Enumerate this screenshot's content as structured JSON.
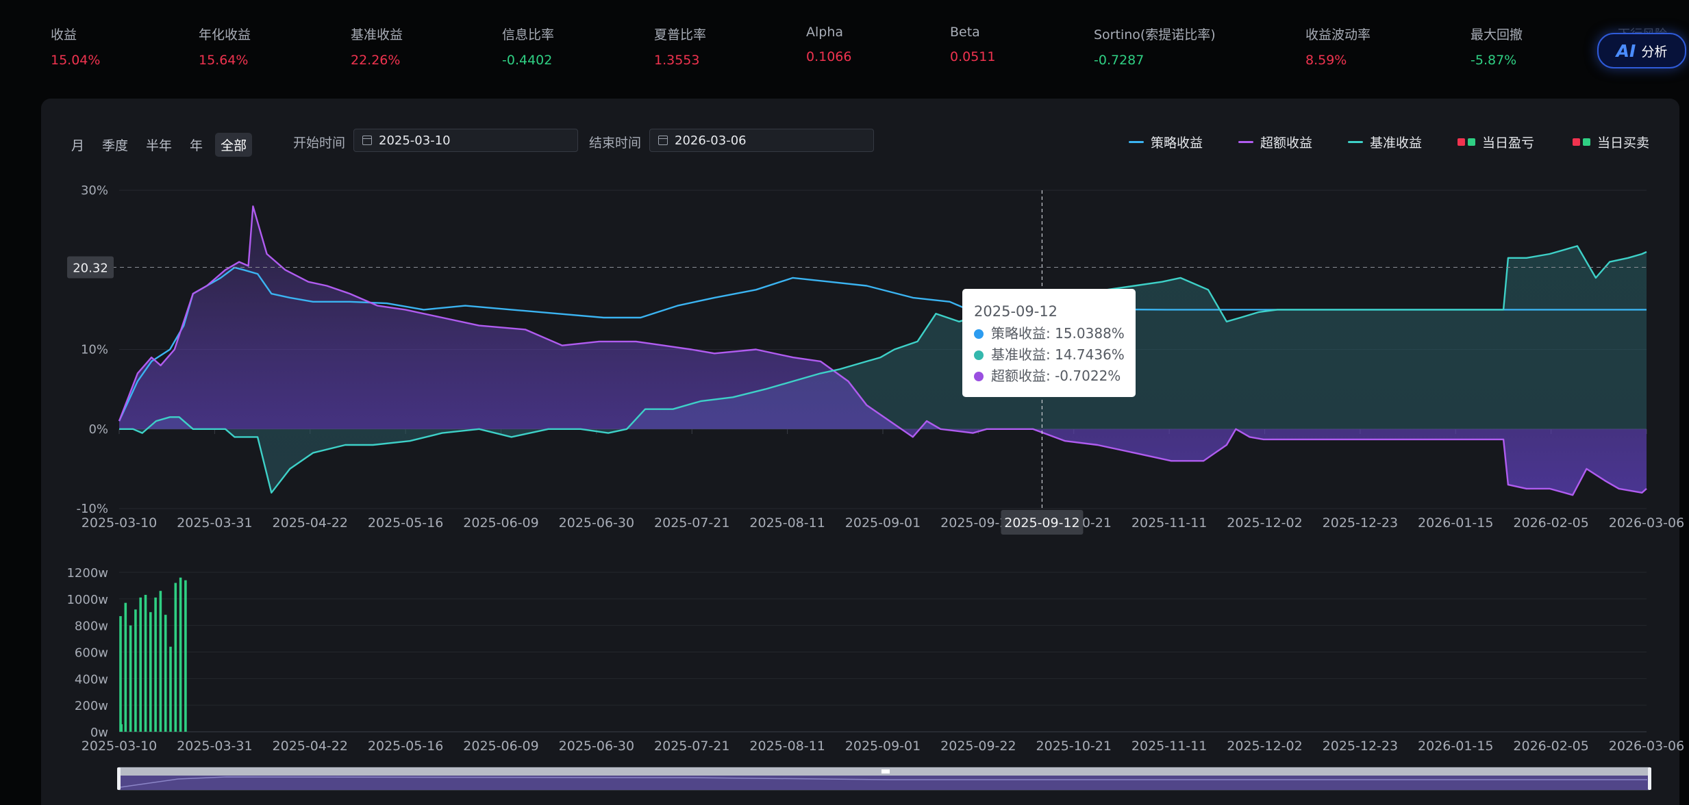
{
  "metrics": [
    {
      "label": "收益",
      "value": "15.04%",
      "color": "#f0334f"
    },
    {
      "label": "年化收益",
      "value": "15.64%",
      "color": "#f0334f"
    },
    {
      "label": "基准收益",
      "value": "22.26%",
      "color": "#f0334f"
    },
    {
      "label": "信息比率",
      "value": "-0.4402",
      "color": "#2fcf83"
    },
    {
      "label": "夏普比率",
      "value": "1.3553",
      "color": "#f0334f"
    },
    {
      "label": "Alpha",
      "value": "0.1066",
      "color": "#f0334f"
    },
    {
      "label": "Beta",
      "value": "0.0511",
      "color": "#f0334f"
    },
    {
      "label": "Sortino(索提诺比率)",
      "value": "-0.7287",
      "color": "#2fcf83"
    },
    {
      "label": "收益波动率",
      "value": "8.59%",
      "color": "#f0334f"
    },
    {
      "label": "最大回撤",
      "value": "-5.87%",
      "color": "#2fcf83"
    }
  ],
  "ai_button": {
    "icon": "AI",
    "label": "分析"
  },
  "ghost_text": "下行风险",
  "periods": [
    "月",
    "季度",
    "半年",
    "年",
    "全部"
  ],
  "active_period": "全部",
  "start_label": "开始时间",
  "start_value": "2025-03-10",
  "end_label": "结束时间",
  "end_value": "2026-03-06",
  "legend": [
    {
      "label": "策略收益",
      "type": "line",
      "color": "#3bb4f2"
    },
    {
      "label": "超额收益",
      "type": "line",
      "color": "#b05cf0"
    },
    {
      "label": "基准收益",
      "type": "line",
      "color": "#3ed1c8"
    },
    {
      "label": "当日盈亏",
      "type": "squares",
      "colors": [
        "#f0334f",
        "#2fcf83"
      ]
    },
    {
      "label": "当日买卖",
      "type": "squares",
      "colors": [
        "#f0334f",
        "#2fcf83"
      ]
    }
  ],
  "tooltip": {
    "date": "2025-09-12",
    "rows": [
      {
        "label": "策略收益: 15.0388%",
        "color": "#2c9cf0"
      },
      {
        "label": "基准收益: 14.7436%",
        "color": "#34b8ad"
      },
      {
        "label": "超额收益: -0.7022%",
        "color": "#9a4fe0"
      }
    ]
  },
  "crosshair_y_label": "20.32",
  "chart_data": [
    {
      "type": "line",
      "x_ticks": [
        "2025-03-10",
        "2025-03-31",
        "2025-04-22",
        "2025-05-16",
        "2025-06-09",
        "2025-06-30",
        "2025-07-21",
        "2025-08-11",
        "2025-09-01",
        "2025-09-22",
        "2025-10-21",
        "2025-11-11",
        "2025-12-02",
        "2025-12-23",
        "2026-01-15",
        "2026-02-05",
        "2026-03-06"
      ],
      "crosshair_x_label": "2025-09-12",
      "y_ticks": [
        "30%",
        "10%",
        "0%",
        "-10%"
      ],
      "ylim": [
        -10,
        30
      ],
      "y_unit": "%",
      "series": [
        {
          "name": "策略收益",
          "color": "#3bb4f2",
          "points": [
            [
              0,
              1
            ],
            [
              4,
              6
            ],
            [
              7,
              8.5
            ],
            [
              11,
              10
            ],
            [
              14,
              13
            ],
            [
              16,
              17
            ],
            [
              19,
              18
            ],
            [
              22,
              19
            ],
            [
              25,
              20.3
            ],
            [
              27,
              20
            ],
            [
              30,
              19.5
            ],
            [
              33,
              17
            ],
            [
              37,
              16.5
            ],
            [
              42,
              16
            ],
            [
              50,
              16
            ],
            [
              58,
              15.8
            ],
            [
              66,
              15
            ],
            [
              75,
              15.5
            ],
            [
              85,
              15
            ],
            [
              95,
              14.5
            ],
            [
              105,
              14
            ],
            [
              113,
              14
            ],
            [
              121,
              15.5
            ],
            [
              129,
              16.5
            ],
            [
              138,
              17.5
            ],
            [
              146,
              19
            ],
            [
              154,
              18.5
            ],
            [
              162,
              18
            ],
            [
              172,
              16.5
            ],
            [
              180,
              16
            ],
            [
              184,
              15
            ],
            [
              192,
              15
            ],
            [
              200,
              15
            ],
            [
              213,
              15.04
            ],
            [
              227,
              15
            ],
            [
              240,
              15
            ],
            [
              255,
              15
            ],
            [
              280,
              15
            ],
            [
              300,
              15
            ],
            [
              320,
              15
            ],
            [
              331,
              15
            ]
          ]
        },
        {
          "name": "超额收益",
          "color": "#b05cf0",
          "points": [
            [
              0,
              1
            ],
            [
              4,
              7
            ],
            [
              7,
              9
            ],
            [
              9,
              8
            ],
            [
              12,
              10
            ],
            [
              16,
              17
            ],
            [
              19,
              18
            ],
            [
              23,
              20
            ],
            [
              26,
              21
            ],
            [
              28,
              20.5
            ],
            [
              29,
              28
            ],
            [
              32,
              22
            ],
            [
              36,
              20
            ],
            [
              41,
              18.5
            ],
            [
              45,
              18
            ],
            [
              50,
              17
            ],
            [
              56,
              15.5
            ],
            [
              62,
              15
            ],
            [
              70,
              14
            ],
            [
              78,
              13
            ],
            [
              88,
              12.5
            ],
            [
              96,
              10.5
            ],
            [
              104,
              11
            ],
            [
              112,
              11
            ],
            [
              118,
              10.5
            ],
            [
              124,
              10
            ],
            [
              129,
              9.5
            ],
            [
              138,
              10
            ],
            [
              146,
              9
            ],
            [
              152,
              8.5
            ],
            [
              158,
              6
            ],
            [
              162,
              3
            ],
            [
              167,
              1
            ],
            [
              172,
              -1
            ],
            [
              175,
              1
            ],
            [
              178,
              0
            ],
            [
              185,
              -0.5
            ],
            [
              188,
              0
            ],
            [
              198,
              0
            ],
            [
              205,
              -1.5
            ],
            [
              212,
              -2
            ],
            [
              220,
              -3
            ],
            [
              228,
              -4
            ],
            [
              235,
              -4
            ],
            [
              240,
              -2
            ],
            [
              242,
              0
            ],
            [
              245,
              -1
            ],
            [
              248,
              -1.3
            ],
            [
              300,
              -1.3
            ],
            [
              301,
              -7
            ],
            [
              305,
              -7.5
            ],
            [
              310,
              -7.5
            ],
            [
              315,
              -8.3
            ],
            [
              318,
              -5
            ],
            [
              322,
              -6.5
            ],
            [
              325,
              -7.5
            ],
            [
              330,
              -8
            ],
            [
              331,
              -7.5
            ]
          ]
        },
        {
          "name": "基准收益",
          "color": "#3ed1c8",
          "points": [
            [
              0,
              0
            ],
            [
              3,
              0
            ],
            [
              5,
              -0.5
            ],
            [
              8,
              1
            ],
            [
              11,
              1.5
            ],
            [
              13,
              1.5
            ],
            [
              16,
              0
            ],
            [
              20,
              0
            ],
            [
              23,
              0
            ],
            [
              25,
              -1
            ],
            [
              28,
              -1
            ],
            [
              30,
              -1
            ],
            [
              33,
              -8
            ],
            [
              37,
              -5
            ],
            [
              42,
              -3
            ],
            [
              49,
              -2
            ],
            [
              55,
              -2
            ],
            [
              63,
              -1.5
            ],
            [
              70,
              -0.5
            ],
            [
              78,
              0
            ],
            [
              85,
              -1
            ],
            [
              93,
              0
            ],
            [
              100,
              0
            ],
            [
              106,
              -0.5
            ],
            [
              110,
              0
            ],
            [
              114,
              2.5
            ],
            [
              120,
              2.5
            ],
            [
              126,
              3.5
            ],
            [
              133,
              4
            ],
            [
              140,
              5
            ],
            [
              146,
              6
            ],
            [
              152,
              7
            ],
            [
              156,
              7.5
            ],
            [
              162,
              8.5
            ],
            [
              165,
              9
            ],
            [
              168,
              10
            ],
            [
              173,
              11
            ],
            [
              177,
              14.5
            ],
            [
              182,
              13.5
            ],
            [
              185,
              14
            ],
            [
              190,
              14.5
            ],
            [
              200,
              14.7
            ],
            [
              206,
              15
            ],
            [
              210,
              15
            ],
            [
              214,
              17.5
            ],
            [
              220,
              18
            ],
            [
              226,
              18.5
            ],
            [
              230,
              19
            ],
            [
              236,
              17.5
            ],
            [
              240,
              13.5
            ],
            [
              243,
              14
            ],
            [
              247,
              14.7
            ],
            [
              251,
              15
            ],
            [
              260,
              15
            ],
            [
              270,
              15
            ],
            [
              280,
              15
            ],
            [
              290,
              15
            ],
            [
              300,
              15
            ],
            [
              301,
              21.5
            ],
            [
              305,
              21.5
            ],
            [
              310,
              22
            ],
            [
              316,
              23
            ],
            [
              318,
              21
            ],
            [
              320,
              19
            ],
            [
              323,
              21
            ],
            [
              327,
              21.5
            ],
            [
              330,
              22
            ],
            [
              331,
              22.26
            ]
          ]
        }
      ]
    },
    {
      "type": "bar",
      "name": "当日盈亏",
      "x_ticks": [
        "2025-03-10",
        "2025-03-31",
        "2025-04-22",
        "2025-05-16",
        "2025-06-09",
        "2025-06-30",
        "2025-07-21",
        "2025-08-11",
        "2025-09-01",
        "2025-09-22",
        "2025-10-21",
        "2025-11-11",
        "2025-12-02",
        "2025-12-23",
        "2026-01-15",
        "2026-02-05",
        "2026-03-06"
      ],
      "y_ticks": [
        "1200w",
        "1000w",
        "800w",
        "600w",
        "400w",
        "200w",
        "0w"
      ],
      "ylim": [
        0,
        1200
      ],
      "unit": "w",
      "values": [
        870,
        970,
        800,
        920,
        1010,
        1030,
        900,
        1010,
        1060,
        880,
        640,
        1120,
        1160,
        1140
      ]
    }
  ]
}
